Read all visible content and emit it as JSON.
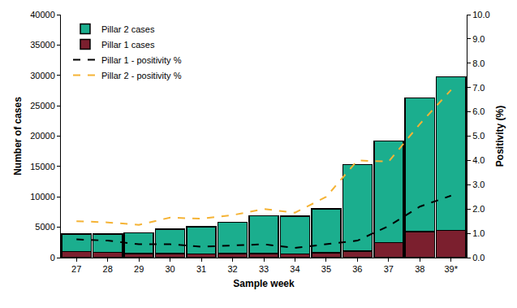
{
  "chart_data": {
    "type": "bar",
    "stacked": true,
    "categories": [
      "27",
      "28",
      "29",
      "30",
      "31",
      "32",
      "33",
      "34",
      "35",
      "36",
      "37",
      "38",
      "39*"
    ],
    "x_label": "Sample week",
    "y_label": "Number of cases",
    "y2_label": "Positivity (%)",
    "ylim": [
      0,
      40000
    ],
    "yticks": [
      0,
      5000,
      10000,
      15000,
      20000,
      25000,
      30000,
      35000,
      40000
    ],
    "y2lim": [
      0,
      10
    ],
    "y2ticks": [
      {
        "value": 0,
        "label": "0.0"
      },
      {
        "value": 1,
        "label": "1.0"
      },
      {
        "value": 2,
        "label": "2.0"
      },
      {
        "value": 3,
        "label": "3.0"
      },
      {
        "value": 4,
        "label": "4.0"
      },
      {
        "value": 5,
        "label": "5.0"
      },
      {
        "value": 6,
        "label": "6.0"
      },
      {
        "value": 7,
        "label": "7.0"
      },
      {
        "value": 8,
        "label": "8.0"
      },
      {
        "value": 9,
        "label": "9.0"
      },
      {
        "value": 10,
        "label": "10.0"
      }
    ],
    "grid": false,
    "legend": "upper left",
    "series": [
      {
        "name": "Pillar 2 cases",
        "type": "bar",
        "color": "#1bae8e",
        "values": [
          2900,
          3000,
          3400,
          4000,
          4500,
          5100,
          6200,
          6200,
          7200,
          14200,
          16700,
          22000,
          25300
        ]
      },
      {
        "name": "Pillar 1 cases",
        "type": "bar",
        "color": "#7b1f2e",
        "values": [
          1000,
          900,
          700,
          700,
          600,
          700,
          700,
          600,
          800,
          1100,
          2500,
          4300,
          4500
        ]
      },
      {
        "name": "Pillar 1 - positivity %",
        "type": "line",
        "axis": "y2",
        "color": "#000000",
        "line_style": "dash",
        "values": [
          0.75,
          0.7,
          0.55,
          0.55,
          0.45,
          0.5,
          0.55,
          0.4,
          0.55,
          0.7,
          1.3,
          2.1,
          2.55
        ]
      },
      {
        "name": "Pillar 2 - positivity %",
        "type": "line",
        "axis": "y2",
        "color": "#f5b335",
        "line_style": "dash",
        "values": [
          1.5,
          1.45,
          1.35,
          1.65,
          1.6,
          1.75,
          2.0,
          1.85,
          2.5,
          4.0,
          3.95,
          5.5,
          6.9
        ]
      }
    ]
  }
}
